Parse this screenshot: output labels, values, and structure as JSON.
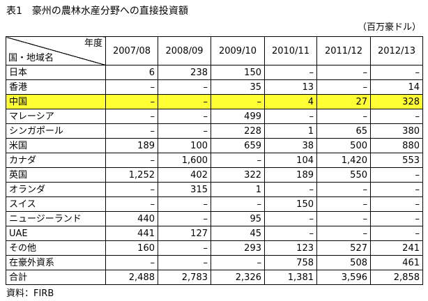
{
  "title": "表1　豪州の農林水産分野への直接投資額",
  "unit": "（百万豪ドル）",
  "table": {
    "corner_top": "年度",
    "corner_bottom": "国・地域名",
    "years": [
      "2007/08",
      "2008/09",
      "2009/10",
      "2010/11",
      "2011/12",
      "2012/13"
    ],
    "rows": [
      {
        "name": "日本",
        "values": [
          "6",
          "238",
          "150",
          "–",
          "–",
          "–"
        ]
      },
      {
        "name": "香港",
        "values": [
          "–",
          "–",
          "35",
          "13",
          "–",
          "14"
        ]
      },
      {
        "name": "中国",
        "values": [
          "–",
          "–",
          "–",
          "4",
          "27",
          "328"
        ]
      },
      {
        "name": "マレーシア",
        "values": [
          "–",
          "–",
          "499",
          "–",
          "–",
          "–"
        ]
      },
      {
        "name": "シンガポール",
        "values": [
          "–",
          "–",
          "228",
          "1",
          "65",
          "380"
        ]
      },
      {
        "name": "米国",
        "values": [
          "189",
          "100",
          "659",
          "38",
          "500",
          "880"
        ]
      },
      {
        "name": "カナダ",
        "values": [
          "–",
          "1,600",
          "–",
          "104",
          "1,420",
          "553"
        ]
      },
      {
        "name": "英国",
        "values": [
          "1,252",
          "402",
          "322",
          "189",
          "550",
          "–"
        ]
      },
      {
        "name": "オランダ",
        "values": [
          "–",
          "315",
          "1",
          "–",
          "–",
          "–"
        ]
      },
      {
        "name": "スイス",
        "values": [
          "–",
          "–",
          "–",
          "150",
          "–",
          "–"
        ]
      },
      {
        "name": "ニュージーランド",
        "values": [
          "440",
          "–",
          "95",
          "–",
          "–",
          "–"
        ]
      },
      {
        "name": "UAE",
        "values": [
          "441",
          "127",
          "45",
          "–",
          "–",
          "–"
        ]
      },
      {
        "name": "その他",
        "values": [
          "160",
          "–",
          "293",
          "123",
          "527",
          "241"
        ]
      },
      {
        "name": "在豪外資系",
        "values": [
          "–",
          "–",
          "–",
          "758",
          "508",
          "461"
        ]
      },
      {
        "name": "合計",
        "values": [
          "2,488",
          "2,783",
          "2,326",
          "1,381",
          "3,596",
          "2,858"
        ]
      }
    ],
    "highlight_color": "#ffff33"
  },
  "source": "資料：FIRB"
}
